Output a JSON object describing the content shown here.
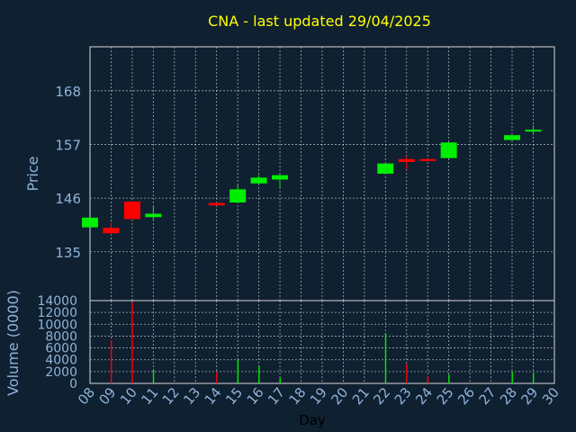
{
  "chart_data": {
    "type": "candlestick",
    "title": "CNA - last updated 29/04/2025",
    "xlabel": "Day",
    "ylabel": "Price",
    "volume_label": "Volume (0000)",
    "colors": {
      "background": "#0f2031",
      "axis_text": "#8fb4d9",
      "grid": "#d8d8d8",
      "up": "#00ee00",
      "down": "#ff0000",
      "title": "#ffff00"
    },
    "price_axis": {
      "ylim": [
        125,
        177
      ],
      "ticks": [
        135,
        146,
        157,
        168
      ]
    },
    "volume_axis": {
      "ylim": [
        0,
        14000
      ],
      "ticks": [
        0,
        2000,
        4000,
        6000,
        8000,
        10000,
        12000,
        14000
      ]
    },
    "x_ticks": [
      "08",
      "09",
      "10",
      "11",
      "12",
      "13",
      "14",
      "15",
      "16",
      "17",
      "18",
      "19",
      "20",
      "21",
      "22",
      "23",
      "24",
      "25",
      "26",
      "27",
      "28",
      "29",
      "30"
    ],
    "candles": [
      {
        "day": "08",
        "open": 140.0,
        "close": 142.0,
        "high": 142.0,
        "low": 140.0,
        "volume": 0
      },
      {
        "day": "09",
        "open": 139.9,
        "close": 138.8,
        "high": 141.0,
        "low": 138.5,
        "volume": 7300
      },
      {
        "day": "10",
        "open": 145.3,
        "close": 141.7,
        "high": 145.3,
        "low": 141.7,
        "volume": 13700
      },
      {
        "day": "11",
        "open": 142.1,
        "close": 142.8,
        "high": 144.4,
        "low": 141.6,
        "volume": 2300
      },
      {
        "day": "14",
        "open": 145.0,
        "close": 144.5,
        "high": 145.0,
        "low": 144.5,
        "volume": 1900
      },
      {
        "day": "15",
        "open": 145.1,
        "close": 147.8,
        "high": 148.6,
        "low": 145.1,
        "volume": 4000
      },
      {
        "day": "16",
        "open": 149.0,
        "close": 150.2,
        "high": 150.7,
        "low": 149.0,
        "volume": 3000
      },
      {
        "day": "17",
        "open": 149.8,
        "close": 150.7,
        "high": 151.0,
        "low": 148.2,
        "volume": 900
      },
      {
        "day": "22",
        "open": 151.0,
        "close": 153.1,
        "high": 153.1,
        "low": 151.0,
        "volume": 8500
      },
      {
        "day": "23",
        "open": 154.0,
        "close": 153.4,
        "high": 154.6,
        "low": 152.0,
        "volume": 3300
      },
      {
        "day": "24",
        "open": 154.0,
        "close": 153.6,
        "high": 154.0,
        "low": 153.6,
        "volume": 1200
      },
      {
        "day": "25",
        "open": 154.2,
        "close": 157.4,
        "high": 157.4,
        "low": 154.2,
        "volume": 1500
      },
      {
        "day": "28",
        "open": 157.9,
        "close": 158.9,
        "high": 158.9,
        "low": 157.9,
        "volume": 2000
      },
      {
        "day": "29",
        "open": 159.8,
        "close": 160.0,
        "high": 160.9,
        "low": 159.1,
        "volume": 1800
      }
    ]
  }
}
